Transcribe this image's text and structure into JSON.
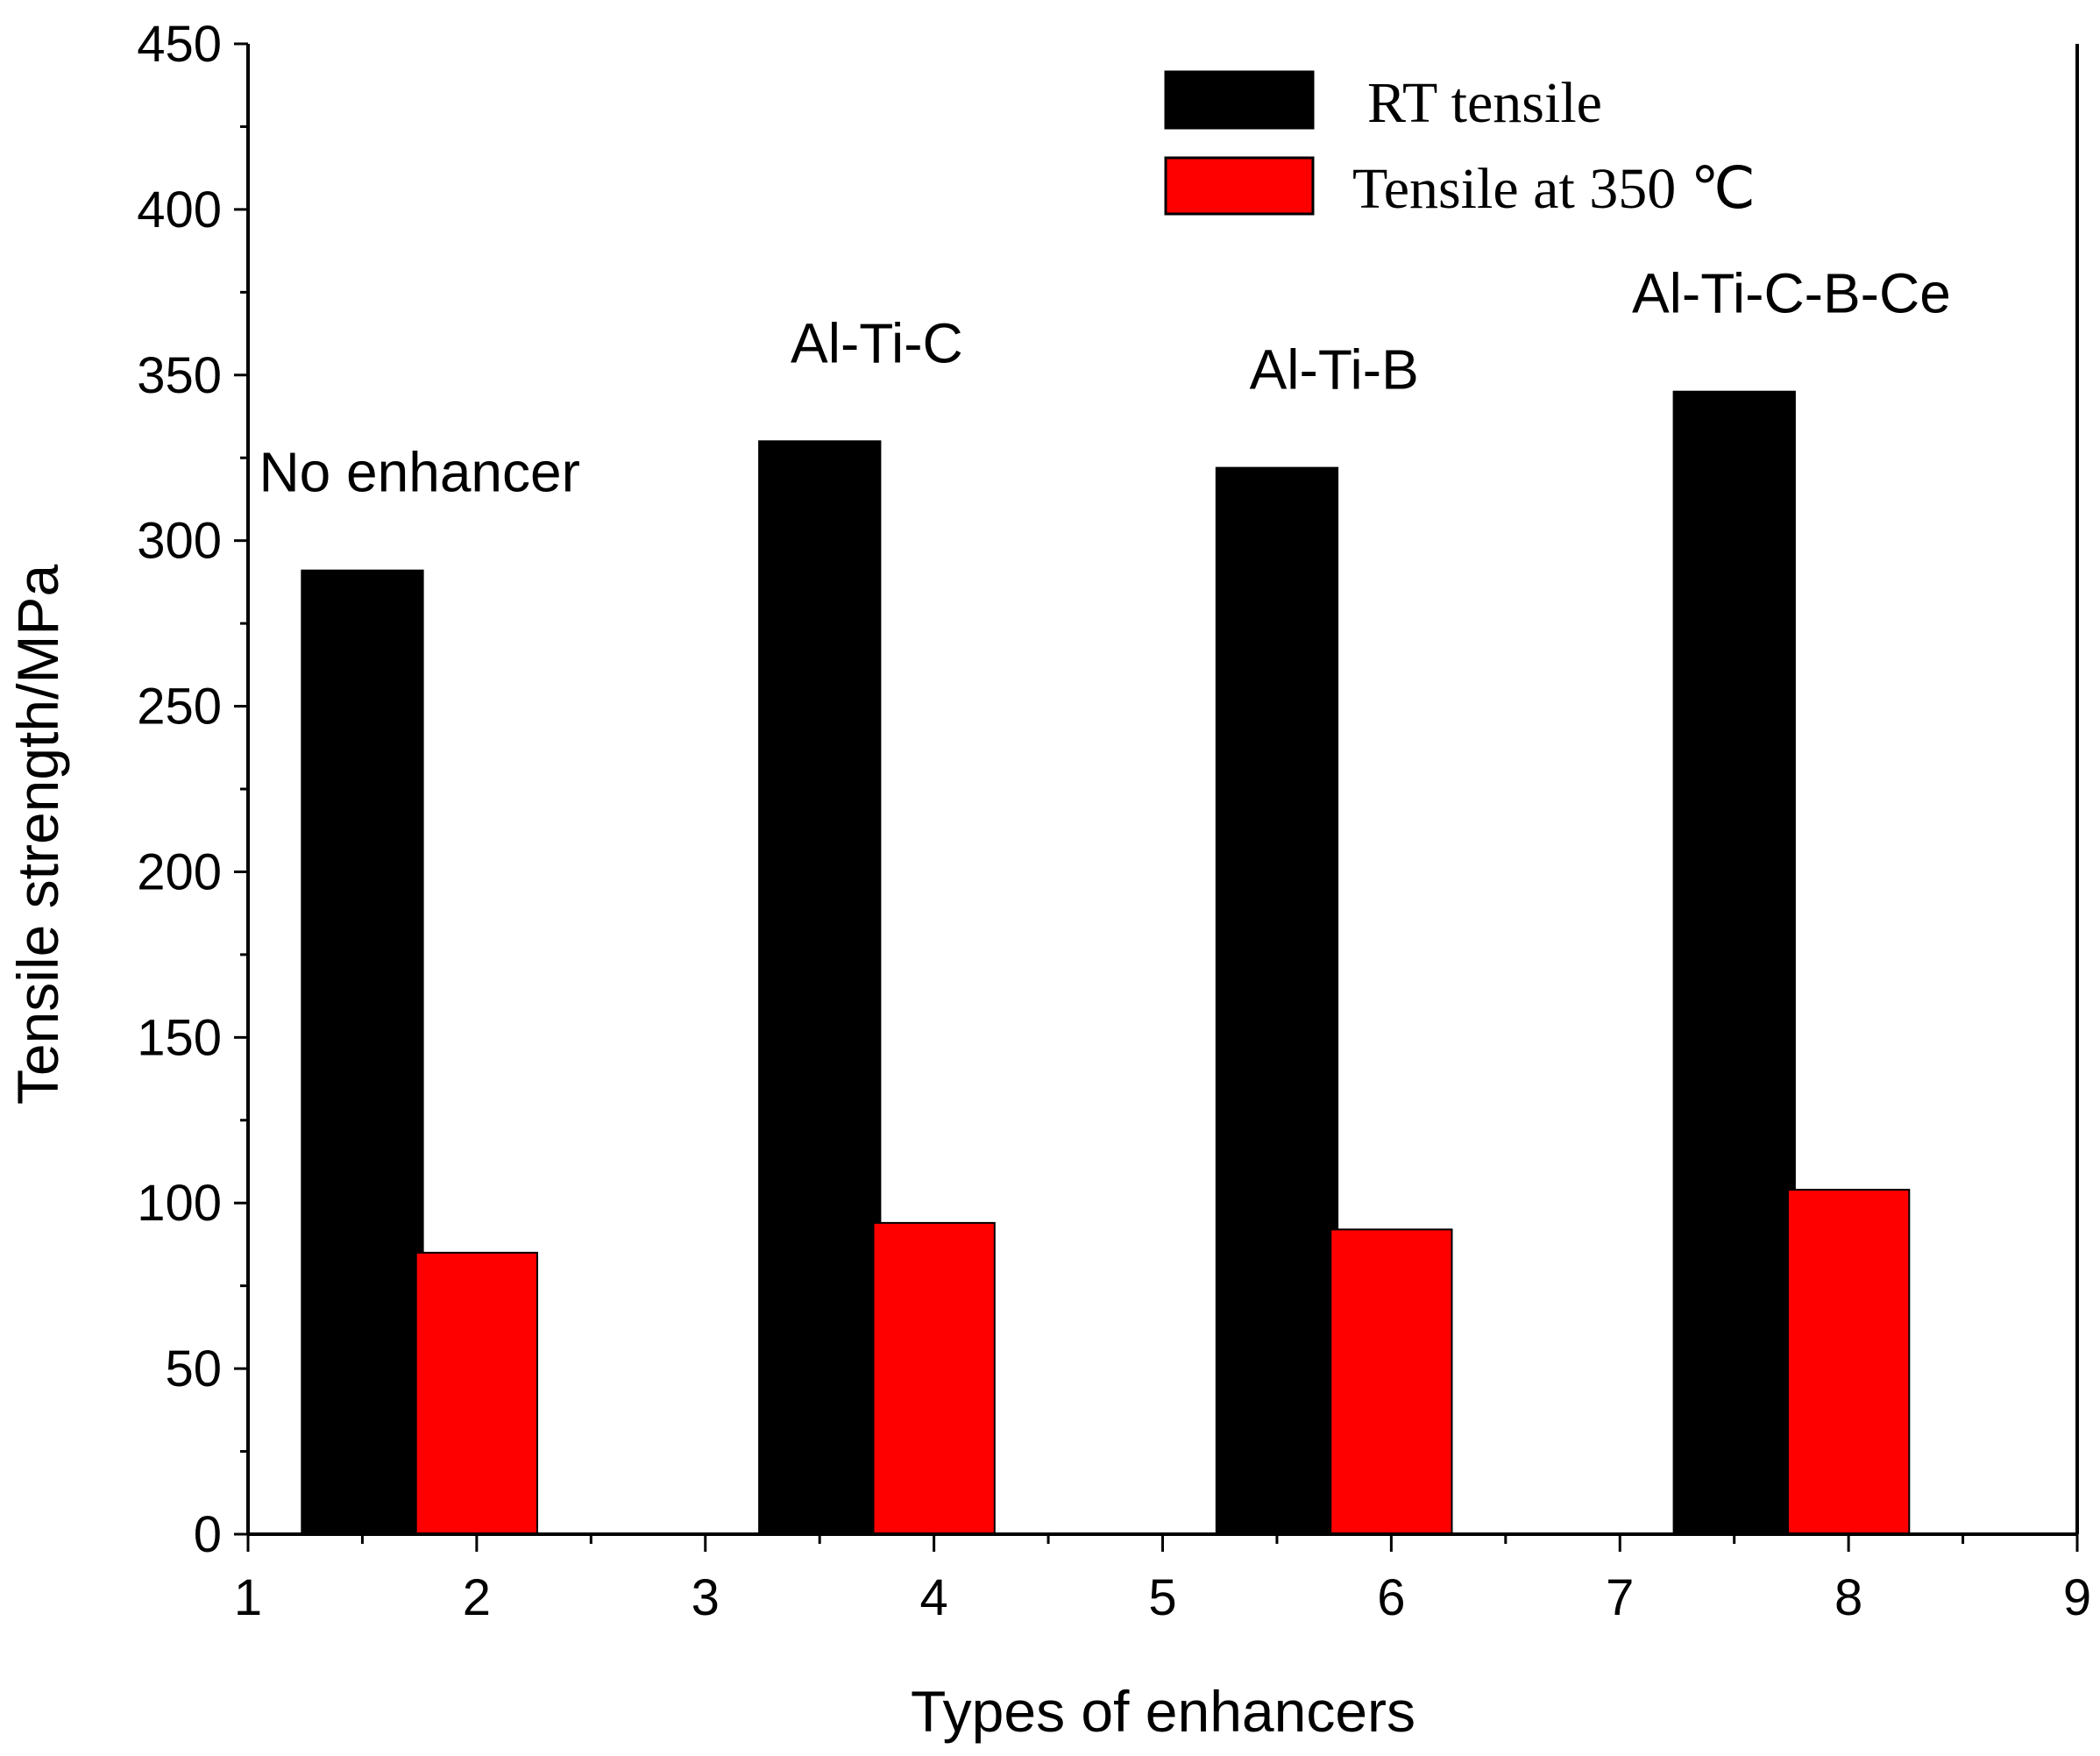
{
  "chart_data": {
    "type": "bar",
    "xlabel": "Types of enhancers",
    "ylabel": "Tensile strength/MPa",
    "xlim": [
      1,
      9
    ],
    "ylim": [
      0,
      450
    ],
    "xticks": [
      "1",
      "2",
      "3",
      "4",
      "5",
      "6",
      "7",
      "8",
      "9"
    ],
    "yticks": [
      "0",
      "50",
      "100",
      "150",
      "200",
      "250",
      "300",
      "350",
      "400",
      "450"
    ],
    "groups": [
      {
        "label": "No enhancer",
        "rt_x": 1.5,
        "hot_x": 2
      },
      {
        "label": "Al-Ti-C",
        "rt_x": 3.5,
        "hot_x": 4
      },
      {
        "label": "Al-Ti-B",
        "rt_x": 5.5,
        "hot_x": 6
      },
      {
        "label": "Al-Ti-C-B-Ce",
        "rt_x": 7.5,
        "hot_x": 8
      }
    ],
    "series": [
      {
        "name": "RT tensile",
        "color": "#000000",
        "values": [
          291,
          330,
          322,
          345
        ]
      },
      {
        "name": "Tensile at 350 ℃",
        "color": "#ff0000",
        "values": [
          85,
          94,
          92,
          104
        ]
      }
    ],
    "bar_width_units": 0.53,
    "legend": "top-right"
  }
}
